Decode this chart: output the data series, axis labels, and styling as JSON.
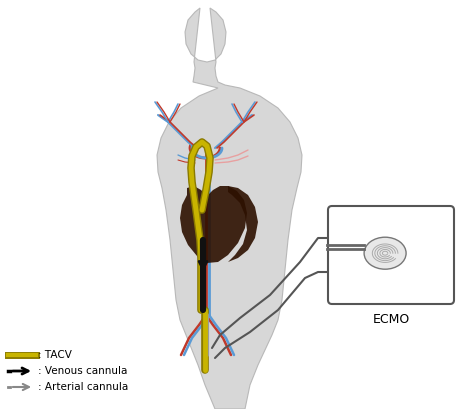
{
  "background_color": "#ffffff",
  "body_color": "#d0d0d0",
  "body_outline": "#b0b0b0",
  "aorta_color": "#c0392b",
  "vein_color": "#5b9bd5",
  "heart_color": "#2d1000",
  "tacv_outer": "#8a7a00",
  "tacv_inner": "#c8b400",
  "venous_color": "#111111",
  "arterial_color": "#999999",
  "ecmo_box_color": "#555555",
  "ecmo_label": "ECMO",
  "legend_tacv": ": TACV",
  "legend_venous": ": Venous cannula",
  "legend_arterial": ": Arterial cannula",
  "figsize": [
    4.74,
    4.09
  ],
  "dpi": 100
}
